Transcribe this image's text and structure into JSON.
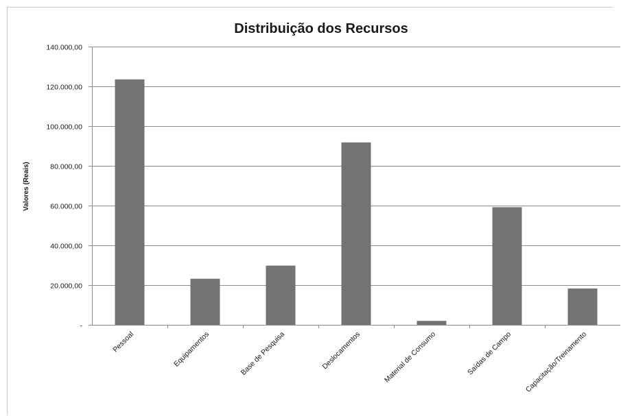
{
  "chart_data": {
    "type": "bar",
    "title": "Distribuição dos Recursos",
    "xlabel": "",
    "ylabel": "Valores (Reais)",
    "categories": [
      "Pessoal",
      "Equipamentos",
      "Base de Pesquisa",
      "Deslocamentos",
      "Material de Consumo",
      "Saídas de Campo",
      "Capacitação/Treinamento"
    ],
    "values": [
      123500,
      23200,
      29800,
      91800,
      2000,
      59200,
      18300
    ],
    "ylim": [
      0,
      140000
    ],
    "yticks": [
      0,
      20000,
      40000,
      60000,
      80000,
      100000,
      120000,
      140000
    ],
    "ytick_labels": [
      "-",
      "20.000,00",
      "40.000,00",
      "60.000,00",
      "80.000,00",
      "100.000,00",
      "120.000,00",
      "140.000,00"
    ],
    "grid": true,
    "legend": "none",
    "bar_color": "#737373",
    "grid_color": "#8c8c8c"
  }
}
